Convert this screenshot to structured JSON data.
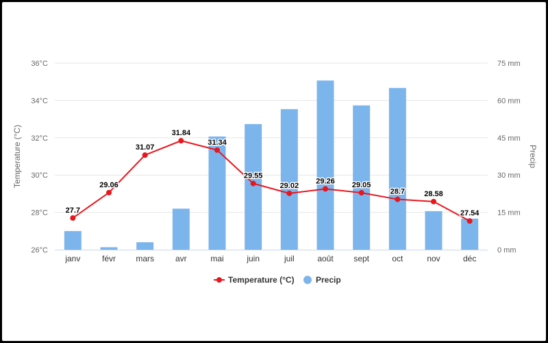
{
  "chart_data": {
    "type": "bar",
    "categories": [
      "janv",
      "févr",
      "mars",
      "avr",
      "mai",
      "juin",
      "juil",
      "août",
      "sept",
      "oct",
      "nov",
      "déc"
    ],
    "series": [
      {
        "name": "Temperature (°C)",
        "type": "line",
        "axis": "left",
        "color": "#e8161d",
        "values": [
          27.7,
          29.06,
          31.07,
          31.84,
          31.34,
          29.55,
          29.02,
          29.26,
          29.05,
          28.7,
          28.58,
          27.54
        ],
        "labels": [
          "27.7",
          "29.06",
          "31.07",
          "31.84",
          "31.34",
          "29.55",
          "29.02",
          "29.26",
          "29.05",
          "28.7",
          "28.58",
          "27.54"
        ]
      },
      {
        "name": "Precip",
        "type": "bar",
        "axis": "right",
        "color": "#7cb5ec",
        "values": [
          7.5,
          1,
          3,
          16.5,
          45.5,
          50.5,
          56.5,
          68,
          58,
          65,
          15.5,
          12.5
        ]
      }
    ],
    "y_left": {
      "label": "Temperature (°C)",
      "range": [
        26,
        36
      ],
      "ticks": [
        26,
        28,
        30,
        32,
        34,
        36
      ],
      "tick_labels": [
        "26°C",
        "28°C",
        "30°C",
        "32°C",
        "34°C",
        "36°C"
      ]
    },
    "y_right": {
      "label": "Precip",
      "range": [
        0,
        75
      ],
      "ticks": [
        0,
        15,
        30,
        45,
        60,
        75
      ],
      "tick_labels": [
        "0 mm",
        "15 mm",
        "30 mm",
        "45 mm",
        "60 mm",
        "75 mm"
      ]
    },
    "grid": true,
    "legend": "bottom-center"
  }
}
